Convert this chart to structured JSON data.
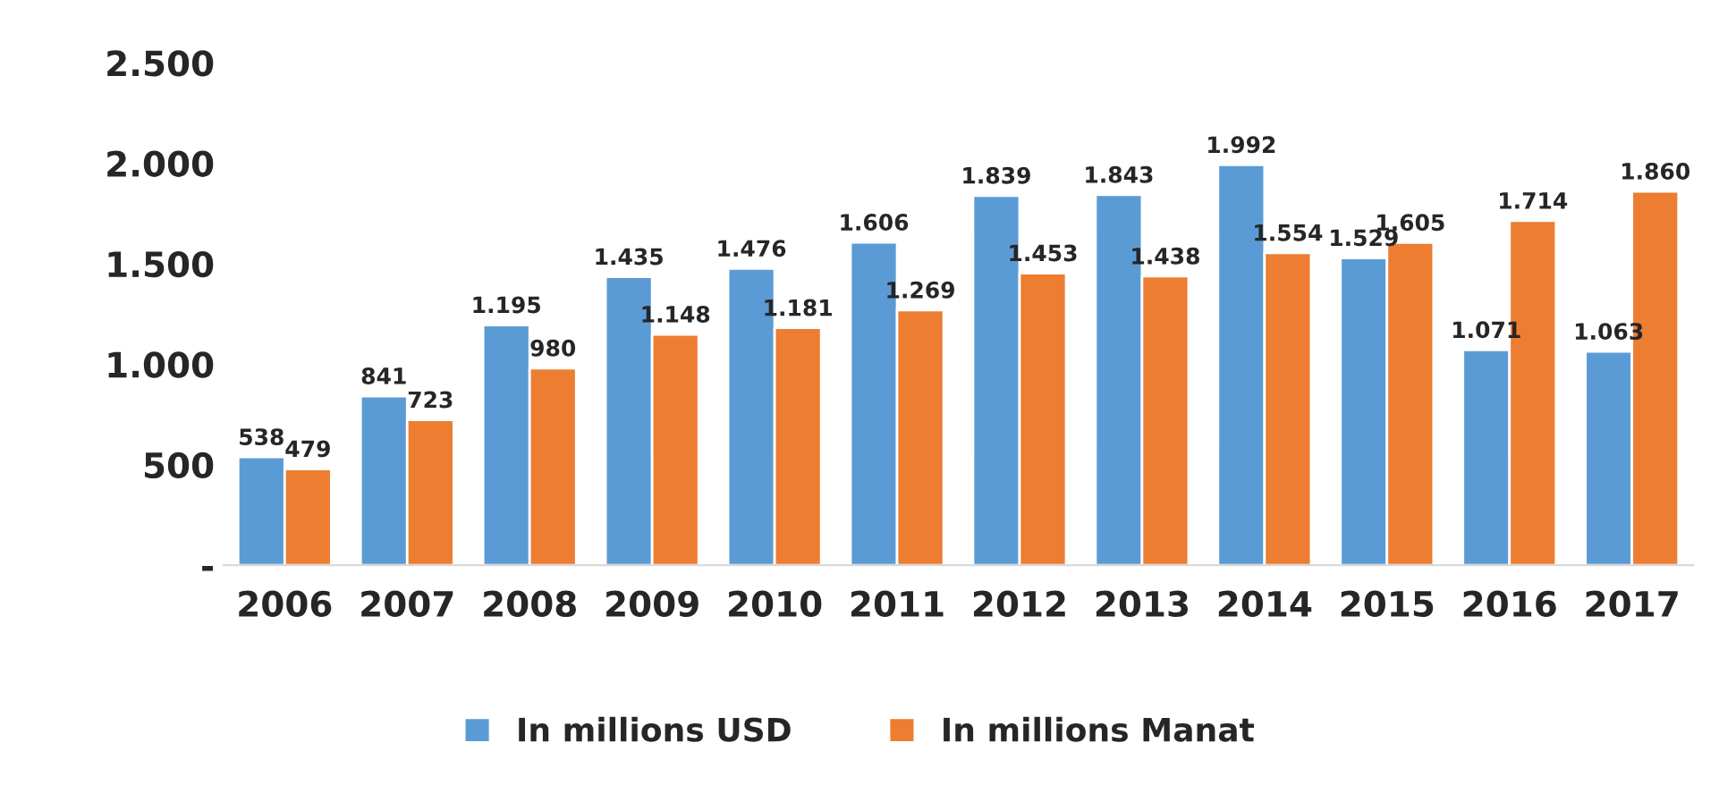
{
  "chart_data": {
    "type": "bar",
    "categories": [
      "2006",
      "2007",
      "2008",
      "2009",
      "2010",
      "2011",
      "2012",
      "2013",
      "2014",
      "2015",
      "2016",
      "2017"
    ],
    "series": [
      {
        "name": "In millions USD",
        "color": "#5b9bd5",
        "values": [
          538,
          841,
          1195,
          1435,
          1476,
          1606,
          1839,
          1843,
          1992,
          1529,
          1071,
          1063
        ],
        "value_labels": [
          "538",
          "841",
          "1.195",
          "1.435",
          "1.476",
          "1.606",
          "1.839",
          "1.843",
          "1.992",
          "1.529",
          "1.071",
          "1.063"
        ]
      },
      {
        "name": "In millions Manat",
        "color": "#ed7d31",
        "values": [
          479,
          723,
          980,
          1148,
          1181,
          1269,
          1453,
          1438,
          1554,
          1605,
          1714,
          1860
        ],
        "value_labels": [
          "479",
          "723",
          "980",
          "1.148",
          "1.181",
          "1.269",
          "1.453",
          "1.438",
          "1.554",
          "1.605",
          "1.714",
          "1.860"
        ]
      }
    ],
    "ylim": [
      0,
      2500
    ],
    "yticks": [
      {
        "value": 0,
        "label": "-"
      },
      500,
      {
        "value": 1000,
        "label": "1.000"
      },
      {
        "value": 1500,
        "label": "1.500"
      },
      {
        "value": 2000,
        "label": "2.000"
      },
      {
        "value": 2500,
        "label": "2.500"
      }
    ],
    "grid": false,
    "legend": "bottom"
  }
}
